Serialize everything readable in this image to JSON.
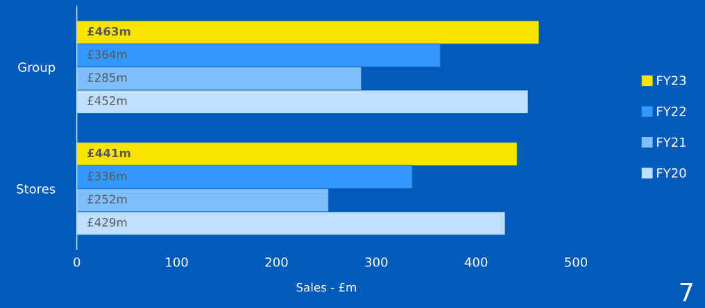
{
  "chart_data": {
    "type": "bar",
    "orientation": "horizontal",
    "categories": [
      "Group",
      "Stores"
    ],
    "series": [
      {
        "name": "FY23",
        "color": "#f9e400",
        "values": [
          463,
          441
        ],
        "value_labels": [
          "£463m",
          "£441m"
        ]
      },
      {
        "name": "FY22",
        "color": "#3399ff",
        "values": [
          364,
          336
        ],
        "value_labels": [
          "£364m",
          "£336m"
        ]
      },
      {
        "name": "FY21",
        "color": "#80bfff",
        "values": [
          285,
          252
        ],
        "value_labels": [
          "£285m",
          "£252m"
        ]
      },
      {
        "name": "FY20",
        "color": "#bfdfff",
        "values": [
          452,
          429
        ],
        "value_labels": [
          "£452m",
          "£429m"
        ]
      }
    ],
    "xlim": [
      0,
      500
    ],
    "xticks": [
      0,
      100,
      200,
      300,
      400,
      500
    ],
    "xlabel": "Sales - £m",
    "grid": false,
    "legend": "right",
    "annotations": [
      "7"
    ]
  }
}
